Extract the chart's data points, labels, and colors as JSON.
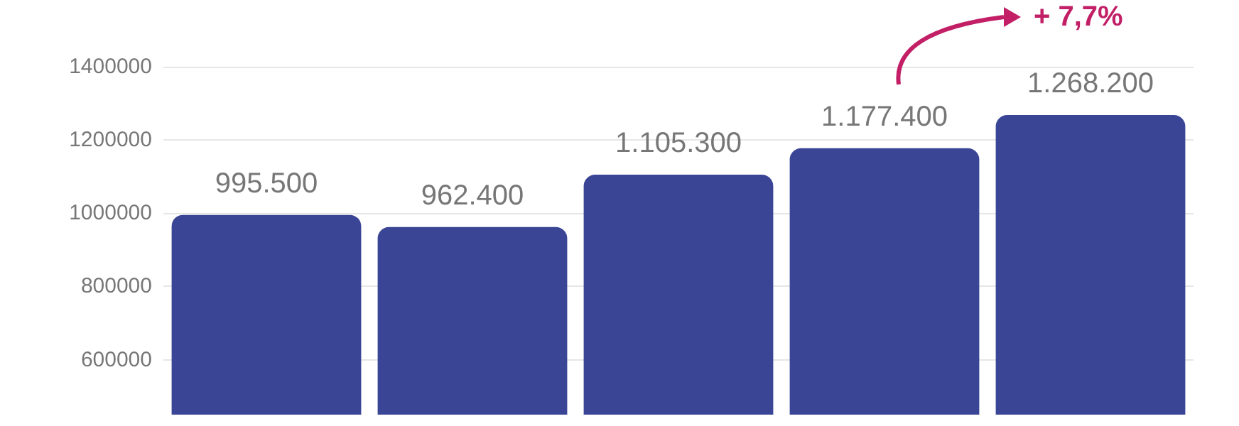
{
  "chart_data": {
    "type": "bar",
    "categories": [
      null,
      null,
      null,
      null,
      null
    ],
    "values": [
      995500,
      962400,
      1105300,
      1177400,
      1268200
    ],
    "value_labels": [
      "995.500",
      "962.400",
      "1.105.300",
      "1.177.400",
      "1.268.200"
    ],
    "color": "#3a4595",
    "ylim": [
      450000,
      1400000
    ],
    "yticks": [
      600000,
      800000,
      1000000,
      1200000,
      1400000
    ],
    "grid": "y",
    "annotations": [
      "+ 7,7%"
    ]
  }
}
